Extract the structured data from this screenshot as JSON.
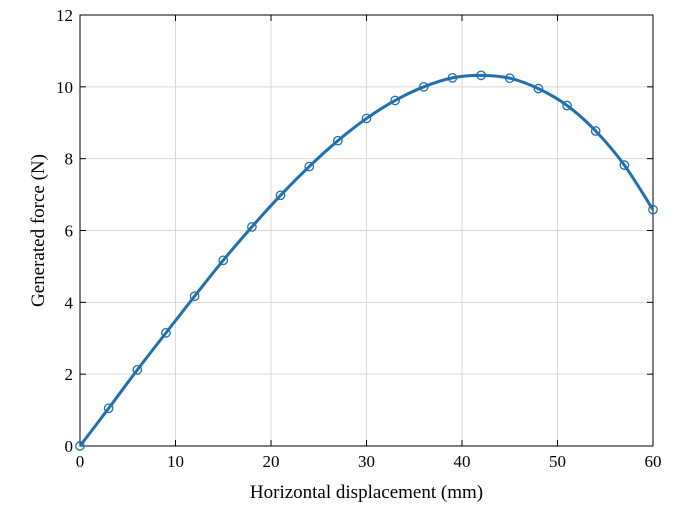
{
  "chart_data": {
    "type": "line",
    "title": "",
    "xlabel": "Horizontal displacement (mm)",
    "ylabel": "Generated force (N)",
    "xlim": [
      0,
      60
    ],
    "ylim": [
      0,
      12
    ],
    "xticks": [
      0,
      10,
      20,
      30,
      40,
      50,
      60
    ],
    "yticks": [
      0,
      2,
      4,
      6,
      8,
      10,
      12
    ],
    "grid": true,
    "color": "#1f6fb2",
    "series": [
      {
        "marker": "circle",
        "x": [
          0,
          3,
          6,
          9,
          12,
          15,
          18,
          21,
          24,
          27,
          30,
          33,
          36,
          39,
          42,
          45,
          48,
          51,
          54,
          57,
          60
        ],
        "y": [
          0.0,
          1.05,
          2.12,
          3.15,
          4.17,
          5.17,
          6.1,
          6.98,
          7.78,
          8.5,
          9.12,
          9.62,
          10.0,
          10.25,
          10.32,
          10.24,
          9.95,
          9.48,
          8.77,
          7.82,
          6.58
        ]
      }
    ]
  }
}
